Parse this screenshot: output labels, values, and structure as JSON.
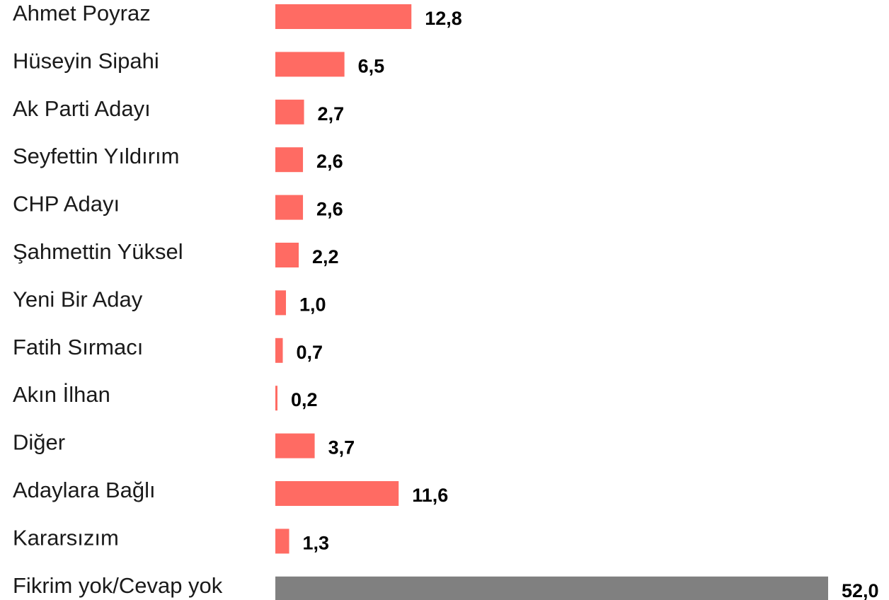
{
  "chart_data": {
    "type": "bar",
    "orientation": "horizontal",
    "categories": [
      "Ahmet Poyraz",
      "Hüseyin Sipahi",
      "Ak Parti Adayı",
      "Seyfettin Yıldırım",
      "CHP Adayı",
      "Şahmettin Yüksel",
      "Yeni Bir Aday",
      "Fatih Sırmacı",
      "Akın İlhan",
      "Diğer",
      "Adaylara Bağlı",
      "Kararsızım",
      "Fikrim yok/Cevap yok"
    ],
    "values": [
      12.8,
      6.5,
      2.7,
      2.6,
      2.6,
      2.2,
      1.0,
      0.7,
      0.2,
      3.7,
      11.6,
      1.3,
      52.0
    ],
    "value_labels": [
      "12,8",
      "6,5",
      "2,7",
      "2,6",
      "2,6",
      "2,2",
      "1,0",
      "0,7",
      "0,2",
      "3,7",
      "11,6",
      "1,3",
      "52,0"
    ],
    "bar_colors": [
      "#ff6b63",
      "#ff6b63",
      "#ff6b63",
      "#ff6b63",
      "#ff6b63",
      "#ff6b63",
      "#ff6b63",
      "#ff6b63",
      "#ff6b63",
      "#ff6b63",
      "#ff6b63",
      "#ff6b63",
      "#808080"
    ],
    "xlim": [
      0,
      52
    ],
    "title": "",
    "xlabel": "",
    "ylabel": "",
    "grid": false,
    "legend": "none"
  }
}
